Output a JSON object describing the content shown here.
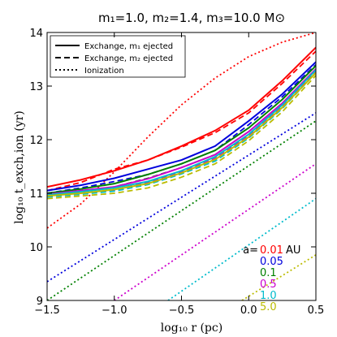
{
  "chart_data": {
    "type": "line",
    "title": "m₁=1.0, m₂=1.4, m₃=10.0 M⊙",
    "xlabel": "log₁₀ r (pc)",
    "ylabel": "log₁₀ t_exch,ion (yr)",
    "xlim": [
      -1.5,
      0.5
    ],
    "ylim": [
      9,
      14
    ],
    "xticks": [
      -1.5,
      -1.0,
      -0.5,
      0.0,
      0.5
    ],
    "xtick_labels": [
      "−1.5",
      "−1.0",
      "−0.5",
      "0.0",
      "0.5"
    ],
    "yticks": [
      9,
      10,
      11,
      12,
      13,
      14
    ],
    "ytick_labels": [
      "9",
      "10",
      "11",
      "12",
      "13",
      "14"
    ],
    "legend": {
      "position": "top-left",
      "entries": [
        {
          "label": "Exchange, m₁ ejected",
          "style": "solid"
        },
        {
          "label": "Exchange, m₂ ejected",
          "style": "dashed"
        },
        {
          "label": "Ionization",
          "style": "dotted"
        }
      ]
    },
    "annotation": {
      "prefix": "a=",
      "unit": "AU",
      "values": [
        "0.01",
        "0.05",
        "0.1",
        "0.5",
        "1.0",
        "5.0"
      ]
    },
    "series": [
      {
        "a": "0.01",
        "color": "#ff0000",
        "style": "solid",
        "x": [
          -1.5,
          -1.25,
          -1.0,
          -0.75,
          -0.5,
          -0.25,
          0.0,
          0.25,
          0.5
        ],
        "y": [
          11.12,
          11.25,
          11.42,
          11.62,
          11.88,
          12.17,
          12.55,
          13.1,
          13.72
        ]
      },
      {
        "a": "0.01",
        "color": "#ff0000",
        "style": "dashed",
        "x": [
          -1.5,
          -1.25,
          -1.0,
          -0.75,
          -0.5,
          -0.25,
          0.0,
          0.25,
          0.5
        ],
        "y": [
          11.05,
          11.2,
          11.45,
          11.62,
          11.86,
          12.13,
          12.5,
          13.05,
          13.65
        ]
      },
      {
        "a": "0.01",
        "color": "#ff0000",
        "style": "dotted",
        "x": [
          -1.5,
          -1.25,
          -1.0,
          -0.75,
          -0.5,
          -0.25,
          0.0,
          0.25,
          0.5
        ],
        "y": [
          10.35,
          10.8,
          11.4,
          12.05,
          12.65,
          13.15,
          13.55,
          13.82,
          14.0
        ]
      },
      {
        "a": "0.05",
        "color": "#0000dd",
        "style": "solid",
        "x": [
          -1.5,
          -1.25,
          -1.0,
          -0.75,
          -0.5,
          -0.25,
          0.0,
          0.25,
          0.5
        ],
        "y": [
          11.05,
          11.15,
          11.28,
          11.45,
          11.62,
          11.88,
          12.35,
          12.85,
          13.45
        ]
      },
      {
        "a": "0.05",
        "color": "#0000dd",
        "style": "dashed",
        "x": [
          -1.5,
          -1.25,
          -1.0,
          -0.75,
          -0.5,
          -0.25,
          0.0,
          0.25,
          0.5
        ],
        "y": [
          11.0,
          11.1,
          11.22,
          11.35,
          11.55,
          11.8,
          12.28,
          12.8,
          13.4
        ]
      },
      {
        "a": "0.05",
        "color": "#0000dd",
        "style": "dotted",
        "x": [
          -1.5,
          0.5
        ],
        "y": [
          9.35,
          12.5
        ]
      },
      {
        "a": "0.1",
        "color": "#008000",
        "style": "solid",
        "x": [
          -1.5,
          -1.25,
          -1.0,
          -0.75,
          -0.5,
          -0.25,
          0.0,
          0.25,
          0.5
        ],
        "y": [
          11.0,
          11.08,
          11.18,
          11.35,
          11.55,
          11.8,
          12.22,
          12.75,
          13.38
        ]
      },
      {
        "a": "0.1",
        "color": "#008000",
        "style": "dashed",
        "x": [
          -1.5,
          -1.25,
          -1.0,
          -0.75,
          -0.5,
          -0.25,
          0.0,
          0.25,
          0.5
        ],
        "y": [
          10.95,
          11.03,
          11.12,
          11.28,
          11.48,
          11.72,
          12.15,
          12.68,
          13.32
        ]
      },
      {
        "a": "0.1",
        "color": "#008000",
        "style": "dotted",
        "x": [
          -1.5,
          0.5
        ],
        "y": [
          9.0,
          12.35
        ]
      },
      {
        "a": "0.5",
        "color": "#cc00cc",
        "style": "solid",
        "x": [
          -1.5,
          -1.25,
          -1.0,
          -0.75,
          -0.5,
          -0.25,
          0.0,
          0.25,
          0.5
        ],
        "y": [
          10.98,
          11.05,
          11.12,
          11.27,
          11.48,
          11.72,
          12.15,
          12.68,
          13.32
        ]
      },
      {
        "a": "0.5",
        "color": "#cc00cc",
        "style": "dashed",
        "x": [
          -1.5,
          -1.25,
          -1.0,
          -0.75,
          -0.5,
          -0.25,
          0.0,
          0.25,
          0.5
        ],
        "y": [
          10.95,
          11.0,
          11.06,
          11.2,
          11.4,
          11.65,
          12.08,
          12.62,
          13.28
        ]
      },
      {
        "a": "0.5",
        "color": "#cc00cc",
        "style": "dotted",
        "x": [
          -1.0,
          0.5
        ],
        "y": [
          9.0,
          11.55
        ]
      },
      {
        "a": "1.0",
        "color": "#00bbcc",
        "style": "solid",
        "x": [
          -1.5,
          -1.25,
          -1.0,
          -0.75,
          -0.5,
          -0.25,
          0.0,
          0.25,
          0.5
        ],
        "y": [
          10.97,
          11.03,
          11.1,
          11.22,
          11.42,
          11.68,
          12.1,
          12.65,
          13.3
        ]
      },
      {
        "a": "1.0",
        "color": "#00bbcc",
        "style": "dashed",
        "x": [
          -1.5,
          -1.25,
          -1.0,
          -0.75,
          -0.5,
          -0.25,
          0.0,
          0.25,
          0.5
        ],
        "y": [
          10.93,
          10.98,
          11.04,
          11.16,
          11.36,
          11.6,
          12.03,
          12.58,
          13.25
        ]
      },
      {
        "a": "1.0",
        "color": "#00bbcc",
        "style": "dotted",
        "x": [
          -0.6,
          0.5
        ],
        "y": [
          9.0,
          10.9
        ]
      },
      {
        "a": "5.0",
        "color": "#bbbb00",
        "style": "solid",
        "x": [
          -1.5,
          -1.25,
          -1.0,
          -0.75,
          -0.5,
          -0.25,
          0.0,
          0.25,
          0.5
        ],
        "y": [
          10.95,
          11.0,
          11.07,
          11.18,
          11.38,
          11.63,
          12.05,
          12.6,
          13.25
        ]
      },
      {
        "a": "5.0",
        "color": "#bbbb00",
        "style": "dashed",
        "x": [
          -1.5,
          -1.25,
          -1.0,
          -0.75,
          -0.5,
          -0.25,
          0.0,
          0.25,
          0.5
        ],
        "y": [
          10.9,
          10.95,
          11.0,
          11.1,
          11.3,
          11.55,
          11.98,
          12.52,
          13.2
        ]
      },
      {
        "a": "5.0",
        "color": "#bbbb00",
        "style": "dotted",
        "x": [
          -0.05,
          0.5
        ],
        "y": [
          9.0,
          9.85
        ]
      }
    ],
    "annotation_colors": [
      "#ff0000",
      "#0000dd",
      "#008000",
      "#cc00cc",
      "#00bbcc",
      "#bbbb00"
    ]
  }
}
